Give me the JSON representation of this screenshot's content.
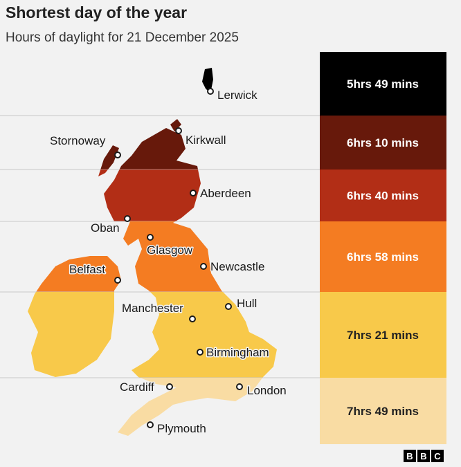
{
  "header": {
    "title": "Shortest day of the year",
    "subtitle": "Hours of daylight for 21 December 2025"
  },
  "bands": [
    {
      "label": "5hrs 49 mins",
      "color": "#000000",
      "text_color": "#ffffff"
    },
    {
      "label": "6hrs 10 mins",
      "color": "#67190b",
      "text_color": "#ffffff"
    },
    {
      "label": "6hrs 40 mins",
      "color": "#b22e16",
      "text_color": "#ffffff"
    },
    {
      "label": "6hrs 58 mins",
      "color": "#f47c22",
      "text_color": "#ffffff"
    },
    {
      "label": "7hrs 21 mins",
      "color": "#f8c94a",
      "text_color": "#222222"
    },
    {
      "label": "7hrs 49 mins",
      "color": "#f9dca3",
      "text_color": "#222222"
    }
  ],
  "cities": [
    "Lerwick",
    "Kirkwall",
    "Stornoway",
    "Aberdeen",
    "Oban",
    "Glasgow",
    "Belfast",
    "Newcastle",
    "Hull",
    "Manchester",
    "Birmingham",
    "Cardiff",
    "London",
    "Plymouth"
  ],
  "logo": [
    "B",
    "B",
    "C"
  ]
}
